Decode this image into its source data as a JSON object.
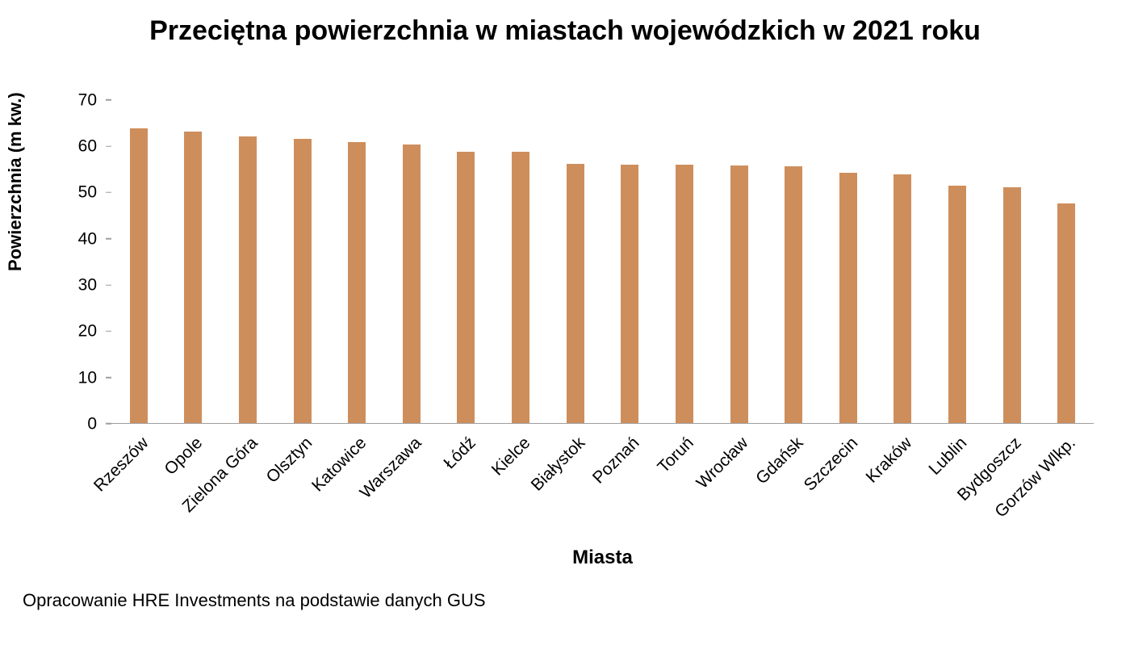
{
  "chart_data": {
    "type": "bar",
    "title": "Przeciętna powierzchnia w miastach wojewódzkich w 2021 roku",
    "xlabel": "Miasta",
    "ylabel": "Powierzchnia (m kw.)",
    "categories": [
      "Rzeszów",
      "Opole",
      "Zielona Góra",
      "Olsztyn",
      "Katowice",
      "Warszawa",
      "Łódź",
      "Kielce",
      "Białystok",
      "Poznań",
      "Toruń",
      "Wrocław",
      "Gdańsk",
      "Szczecin",
      "Kraków",
      "Lublin",
      "Bydgoszcz",
      "Gorzów Wlkp."
    ],
    "values": [
      63.9,
      63.2,
      62.1,
      61.6,
      60.8,
      60.3,
      58.8,
      58.7,
      56.1,
      56.0,
      55.9,
      55.8,
      55.6,
      54.2,
      53.8,
      51.5,
      51.0,
      47.5
    ],
    "ylim": [
      0,
      70
    ],
    "ytick_step": 10,
    "grid": false,
    "legend": false,
    "bar_color": "#CE8E5C",
    "axis_color": "#9e9e9e"
  },
  "footer": {
    "source": "Opracowanie HRE Investments na podstawie danych GUS"
  }
}
